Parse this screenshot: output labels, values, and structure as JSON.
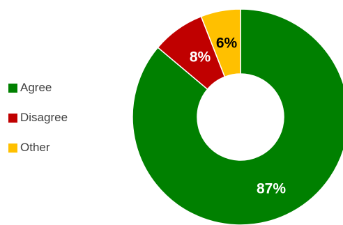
{
  "chart_data": {
    "type": "pie",
    "donut": true,
    "categories": [
      "Agree",
      "Disagree",
      "Other"
    ],
    "values": [
      87,
      8,
      6
    ],
    "labels": [
      "87%",
      "8%",
      "6%"
    ],
    "colors": [
      "#008000",
      "#C00000",
      "#FFC000"
    ],
    "label_colors": [
      "#ffffff",
      "#ffffff",
      "#000000"
    ],
    "legend_position": "left"
  }
}
